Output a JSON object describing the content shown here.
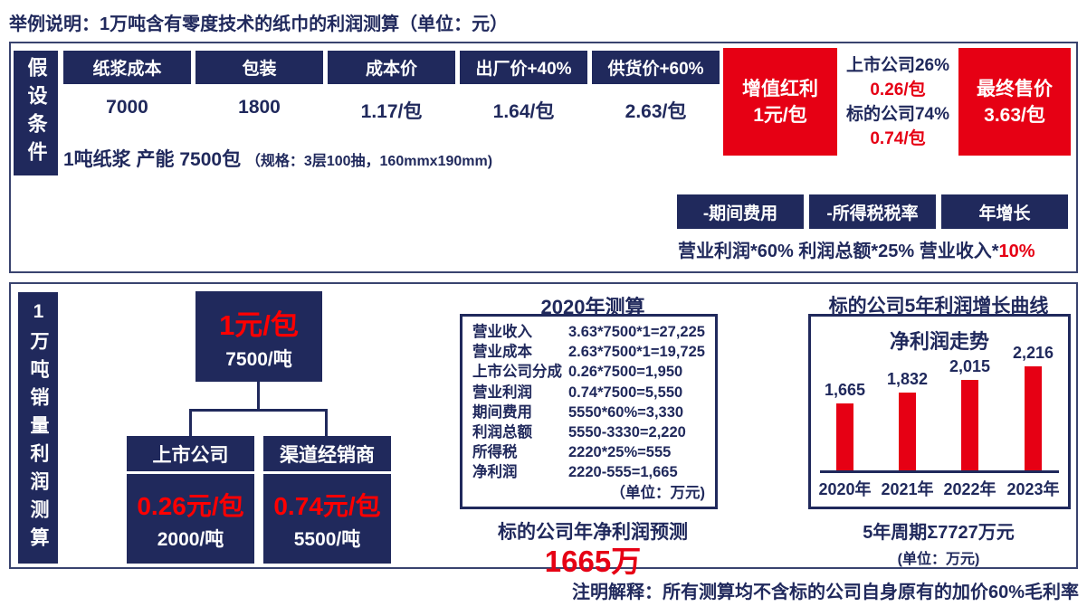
{
  "colors": {
    "navy": "#20295c",
    "red": "#e60014"
  },
  "title": "举例说明：1万吨含有零度技术的纸巾的利润测算（单位：元）",
  "assumptions": {
    "sidebar": "假设条件",
    "cost_columns": [
      {
        "label": "纸浆成本",
        "value": "7000"
      },
      {
        "label": "包装",
        "value": "1800"
      },
      {
        "label": "成本价",
        "value": "1.17/包"
      },
      {
        "label": "出厂价+40%",
        "value": "1.64/包"
      },
      {
        "label": "供货价+60%",
        "value": "2.63/包"
      }
    ],
    "capacity_note": "1吨纸浆 产能 7500包",
    "capacity_spec": "（规格：3层100抽，160mmx190mm)",
    "bonus": {
      "line1": "增值红利",
      "line2": "1元/包"
    },
    "split": {
      "company_label": "上市公司26%",
      "company_value": "0.26/包",
      "target_label": "标的公司74%",
      "target_value": "0.74/包"
    },
    "final_price": {
      "line1": "最终售价",
      "line2": "3.63/包"
    },
    "deduction_boxes": [
      "-期间费用",
      "-所得税税率",
      "年增长"
    ],
    "deduction_formula_prefix": "营业利润*60% 利润总额*25% 营业收入*",
    "deduction_formula_red": "10%"
  },
  "volume_model": {
    "sidebar": "1万吨销量利润测算",
    "root": {
      "price": "1元/包",
      "capacity": "7500/吨"
    },
    "children": [
      {
        "name": "上市公司",
        "price": "0.26元/包",
        "capacity": "2000/吨"
      },
      {
        "name": "渠道经销商",
        "price": "0.74元/包",
        "capacity": "5500/吨"
      }
    ]
  },
  "calc_2020": {
    "title": "2020年测算",
    "rows": [
      {
        "label": "营业收入",
        "formula": "3.63*7500*1=27,225"
      },
      {
        "label": "营业成本",
        "formula": "2.63*7500*1=19,725"
      },
      {
        "label": "上市公司分成",
        "formula": "0.26*7500=1,950"
      },
      {
        "label": "营业利润",
        "formula": "0.74*7500=5,550"
      },
      {
        "label": "期间费用",
        "formula": "5550*60%=3,330"
      },
      {
        "label": "利润总额",
        "formula": "5550-3330=2,220"
      },
      {
        "label": "所得税",
        "formula": "2220*25%=555"
      },
      {
        "label": "净利润",
        "formula": "2220-555=1,665"
      }
    ],
    "unit_note": "（单位：万元)",
    "forecast_label": "标的公司年净利润预测",
    "forecast_value": "1665万"
  },
  "chart_data": {
    "type": "bar",
    "title": "标的公司5年利润增长曲线",
    "inner_title": "净利润走势",
    "categories": [
      "2020年",
      "2021年",
      "2022年",
      "2023年"
    ],
    "values": [
      1665,
      1832,
      2015,
      2216
    ],
    "labels": [
      "1,665",
      "1,832",
      "2,015",
      "2,216"
    ],
    "bar_color": "#e60014",
    "legend": "none",
    "grid": false,
    "sum_note": "5年周期Σ7727万元",
    "unit_note": "(单位：万元)"
  },
  "footnote": "注明解释：所有测算均不含标的公司自身原有的加价60%毛利率"
}
